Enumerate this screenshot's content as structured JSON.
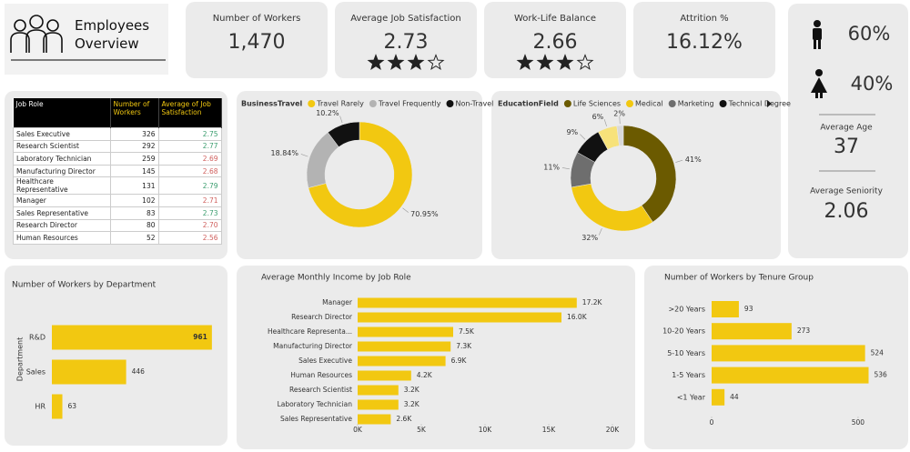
{
  "header": {
    "title": "Employees Overview"
  },
  "kpis": [
    {
      "label": "Number of Workers",
      "value": "1,470"
    },
    {
      "label": "Average Job Satisfaction",
      "value": "2.73"
    },
    {
      "label": "Work-Life Balance",
      "value": "2.66"
    },
    {
      "label": "Attrition %",
      "value": "16.12%"
    }
  ],
  "gender": {
    "male": "60%",
    "female": "40%"
  },
  "averages": [
    {
      "label": "Average Age",
      "value": "37"
    },
    {
      "label": "Average Seniority",
      "value": "2.06"
    }
  ],
  "table": {
    "columns": [
      "Job Role",
      "Number of Workers",
      "Average of Job Satisfaction"
    ],
    "rows": [
      [
        "Sales Executive",
        "326",
        "2.75"
      ],
      [
        "Research Scientist",
        "292",
        "2.77"
      ],
      [
        "Laboratory Technician",
        "259",
        "2.69"
      ],
      [
        "Manufacturing Director",
        "145",
        "2.68"
      ],
      [
        "Healthcare Representative",
        "131",
        "2.79"
      ],
      [
        "Manager",
        "102",
        "2.71"
      ],
      [
        "Sales Representative",
        "83",
        "2.73"
      ],
      [
        "Research Director",
        "80",
        "2.70"
      ],
      [
        "Human Resources",
        "52",
        "2.56"
      ]
    ],
    "satisfaction_colors": [
      "#3a9d6e",
      "#3a9d6e",
      "#d0605e",
      "#d0605e",
      "#3a9d6e",
      "#d0605e",
      "#3a9d6e",
      "#d0605e",
      "#d0605e"
    ]
  },
  "chart_data": [
    {
      "type": "donut",
      "legend_title": "BusinessTravel",
      "categories": [
        "Travel Rarely",
        "Travel Frequently",
        "Non-Travel"
      ],
      "values": [
        70.95,
        18.84,
        10.2
      ],
      "value_labels": [
        "70.95%",
        "18.84%",
        "10.2%"
      ],
      "colors": [
        "#f2c811",
        "#b3b3b3",
        "#111111"
      ]
    },
    {
      "type": "donut",
      "legend_title": "EducationField",
      "categories": [
        "Life Sciences",
        "Medical",
        "Marketing",
        "Technical Degree",
        null,
        null
      ],
      "values": [
        41,
        32,
        11,
        9,
        6,
        2
      ],
      "value_labels": [
        "41%",
        "32%",
        "11%",
        "9%",
        "6%",
        "2%"
      ],
      "colors": [
        "#6b5a00",
        "#f2c811",
        "#6e6e6e",
        "#111111",
        "#f7e27a",
        "#d9d9d9"
      ]
    },
    {
      "type": "hbar",
      "title": "Number of Workers by Department",
      "y_label": "Department",
      "categories": [
        "R&D",
        "Sales",
        "HR"
      ],
      "values": [
        961,
        446,
        63
      ],
      "color": "#f2c811",
      "xlim": [
        0,
        1000
      ]
    },
    {
      "type": "hbar",
      "title": "Average Monthly Income by Job Role",
      "categories": [
        "Manager",
        "Research Director",
        "Healthcare Representa...",
        "Manufacturing Director",
        "Sales Executive",
        "Human Resources",
        "Research Scientist",
        "Laboratory Technician",
        "Sales Representative"
      ],
      "values": [
        17200,
        16000,
        7500,
        7300,
        6900,
        4200,
        3200,
        3200,
        2600
      ],
      "value_labels": [
        "17.2K",
        "16.0K",
        "7.5K",
        "7.3K",
        "6.9K",
        "4.2K",
        "3.2K",
        "3.2K",
        "2.6K"
      ],
      "color": "#f2c811",
      "xlim": [
        0,
        20000
      ],
      "xticks": [
        {
          "value": 0,
          "label": "0K"
        },
        {
          "value": 5000,
          "label": "5K"
        },
        {
          "value": 10000,
          "label": "10K"
        },
        {
          "value": 15000,
          "label": "15K"
        },
        {
          "value": 20000,
          "label": "20K"
        }
      ]
    },
    {
      "type": "hbar",
      "title": "Number of Workers by Tenure Group",
      "categories": [
        ">20 Years",
        "10-20 Years",
        "5-10 Years",
        "1-5 Years",
        "<1 Year"
      ],
      "values": [
        93,
        273,
        524,
        536,
        44
      ],
      "color": "#f2c811",
      "xlim": [
        0,
        550
      ],
      "xticks": [
        0,
        500
      ]
    }
  ]
}
